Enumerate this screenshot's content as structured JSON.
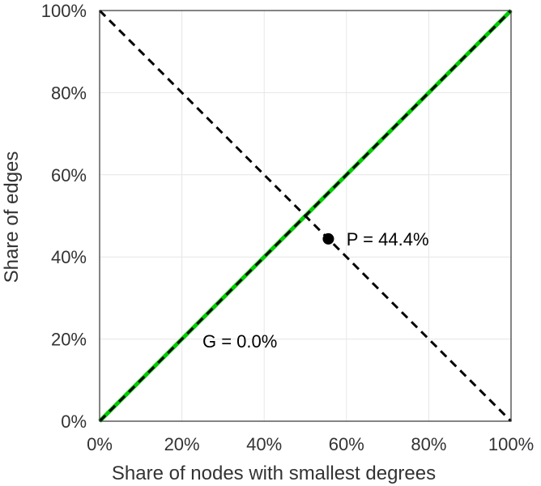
{
  "chart_data": {
    "type": "line",
    "xlabel": "Share of nodes with smallest degrees",
    "ylabel": "Share of edges",
    "xlim": [
      0,
      100
    ],
    "ylim": [
      0,
      100
    ],
    "x_ticks": [
      "0%",
      "20%",
      "40%",
      "60%",
      "80%",
      "100%"
    ],
    "y_ticks": [
      "0%",
      "20%",
      "40%",
      "60%",
      "80%",
      "100%"
    ],
    "tick_values": [
      0,
      20,
      40,
      60,
      80,
      100
    ],
    "grid": true,
    "series": [
      {
        "x": [
          0,
          100
        ],
        "y": [
          0,
          100
        ],
        "style": "solid",
        "color": "#00cc00"
      },
      {
        "x": [
          0,
          100
        ],
        "y": [
          0,
          100
        ],
        "style": "dashed",
        "color": "#000000"
      },
      {
        "x": [
          0,
          100
        ],
        "y": [
          100,
          0
        ],
        "style": "dashed",
        "color": "#000000"
      }
    ],
    "point": {
      "x": 55.6,
      "y": 44.4,
      "color": "#000000"
    },
    "annotations": [
      {
        "text": "P = 44.4%",
        "x": 60,
        "y": 44.4
      },
      {
        "text": "G = 0.0%",
        "x": 25,
        "y": 19.5
      }
    ]
  }
}
